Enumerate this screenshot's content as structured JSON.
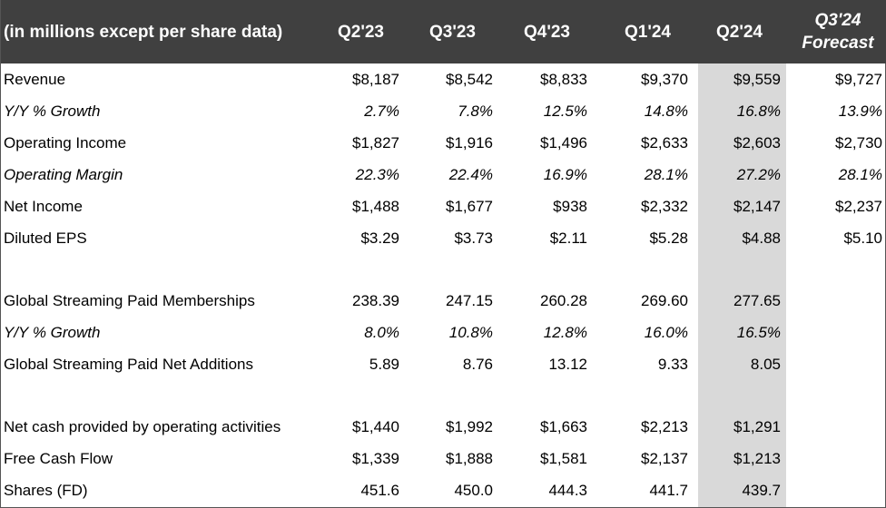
{
  "table": {
    "header_label": "(in millions except per share data)",
    "columns": [
      "Q2'23",
      "Q3'23",
      "Q4'23",
      "Q1'24",
      "Q2'24"
    ],
    "forecast_header": [
      "Q3'24",
      "Forecast"
    ],
    "highlight_column": "Q2'24",
    "highlight_color": "#d9d9d9",
    "header_bg": "#404040",
    "rows": [
      {
        "label": "Revenue",
        "values": [
          "$8,187",
          "$8,542",
          "$8,833",
          "$9,370",
          "$9,559"
        ],
        "forecast": "$9,727"
      },
      {
        "label": "Y/Y % Growth",
        "values": [
          "2.7%",
          "7.8%",
          "12.5%",
          "14.8%",
          "16.8%"
        ],
        "forecast": "13.9%"
      },
      {
        "label": "Operating Income",
        "values": [
          "$1,827",
          "$1,916",
          "$1,496",
          "$2,633",
          "$2,603"
        ],
        "forecast": "$2,730"
      },
      {
        "label": "Operating Margin",
        "values": [
          "22.3%",
          "22.4%",
          "16.9%",
          "28.1%",
          "27.2%"
        ],
        "forecast": "28.1%"
      },
      {
        "label": "Net Income",
        "values": [
          "$1,488",
          "$1,677",
          "$938",
          "$2,332",
          "$2,147"
        ],
        "forecast": "$2,237"
      },
      {
        "label": "Diluted EPS",
        "values": [
          "$3.29",
          "$3.73",
          "$2.11",
          "$5.28",
          "$4.88"
        ],
        "forecast": "$5.10"
      },
      {
        "label": "Global Streaming Paid Memberships",
        "values": [
          "238.39",
          "247.15",
          "260.28",
          "269.60",
          "277.65"
        ],
        "forecast": ""
      },
      {
        "label": "Y/Y % Growth",
        "values": [
          "8.0%",
          "10.8%",
          "12.8%",
          "16.0%",
          "16.5%"
        ],
        "forecast": ""
      },
      {
        "label": "Global Streaming Paid Net Additions",
        "values": [
          "5.89",
          "8.76",
          "13.12",
          "9.33",
          "8.05"
        ],
        "forecast": ""
      },
      {
        "label": "Net cash provided by operating activities",
        "values": [
          "$1,440",
          "$1,992",
          "$1,663",
          "$2,213",
          "$1,291"
        ],
        "forecast": ""
      },
      {
        "label": "Free Cash Flow",
        "values": [
          "$1,339",
          "$1,888",
          "$1,581",
          "$2,137",
          "$1,213"
        ],
        "forecast": ""
      },
      {
        "label": "Shares (FD)",
        "values": [
          "451.6",
          "450.0",
          "444.3",
          "441.7",
          "439.7"
        ],
        "forecast": ""
      }
    ]
  }
}
